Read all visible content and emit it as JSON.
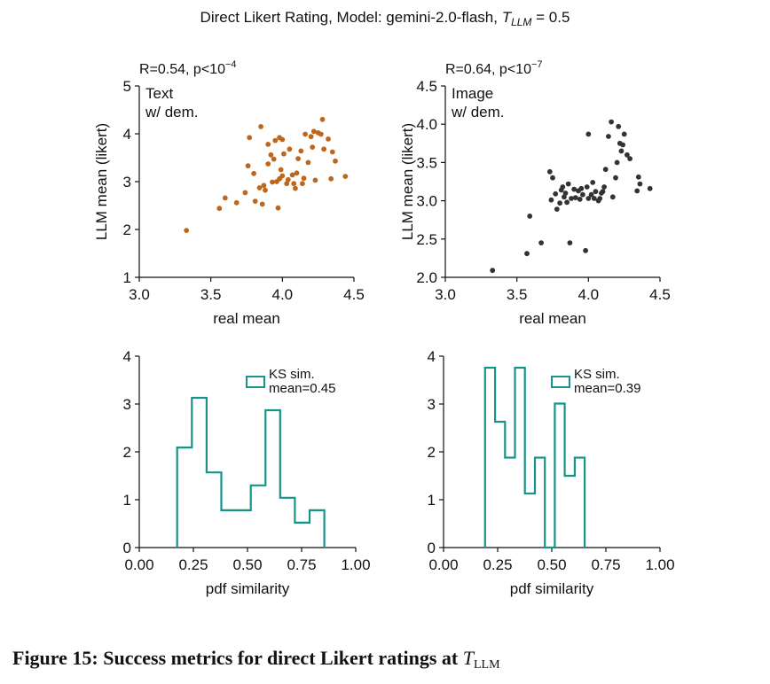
{
  "figure": {
    "title_prefix": "Direct Likert Rating, Model: gemini-2.0-flash, ",
    "title_sym": "T",
    "title_sub": "LLM",
    "title_suffix": " = 0.5",
    "caption_text": "Figure 15: Success metrics for direct Likert ratings at ",
    "caption_sym": "T",
    "caption_sub": "LLM"
  },
  "colors": {
    "text_scatter": "#C0661A",
    "image_scatter": "#333333",
    "hist": "#17948A",
    "axis": "#111111"
  },
  "chart_data": [
    {
      "id": "text-scatter",
      "type": "scatter",
      "stat_prefix": "R=0.54, p<10",
      "stat_exp": "−4",
      "label_lines": [
        "Text",
        "w/ dem."
      ],
      "xlabel": "real mean",
      "ylabel": "LLM mean (likert)",
      "xlim": [
        3.0,
        4.5
      ],
      "ylim": [
        1,
        5
      ],
      "xticks": [
        "3.0",
        "3.5",
        "4.0",
        "4.5"
      ],
      "yticks": [
        "1",
        "2",
        "3",
        "4",
        "5"
      ],
      "points": [
        [
          3.33,
          1.98
        ],
        [
          3.56,
          2.44
        ],
        [
          3.6,
          2.66
        ],
        [
          3.68,
          2.56
        ],
        [
          3.74,
          2.77
        ],
        [
          3.76,
          3.33
        ],
        [
          3.77,
          3.92
        ],
        [
          3.8,
          3.17
        ],
        [
          3.81,
          2.59
        ],
        [
          3.84,
          2.87
        ],
        [
          3.85,
          4.15
        ],
        [
          3.86,
          2.53
        ],
        [
          3.87,
          2.92
        ],
        [
          3.88,
          2.82
        ],
        [
          3.9,
          3.37
        ],
        [
          3.9,
          3.78
        ],
        [
          3.92,
          3.56
        ],
        [
          3.93,
          2.99
        ],
        [
          3.94,
          3.47
        ],
        [
          3.95,
          3.86
        ],
        [
          3.96,
          3.0
        ],
        [
          3.97,
          2.45
        ],
        [
          3.98,
          3.92
        ],
        [
          3.98,
          3.06
        ],
        [
          3.99,
          3.25
        ],
        [
          4.0,
          3.88
        ],
        [
          4.0,
          3.12
        ],
        [
          4.01,
          3.58
        ],
        [
          4.03,
          2.96
        ],
        [
          4.04,
          3.04
        ],
        [
          4.05,
          3.68
        ],
        [
          4.07,
          3.14
        ],
        [
          4.08,
          2.96
        ],
        [
          4.09,
          2.86
        ],
        [
          4.1,
          3.18
        ],
        [
          4.11,
          3.48
        ],
        [
          4.13,
          3.64
        ],
        [
          4.14,
          2.96
        ],
        [
          4.15,
          3.07
        ],
        [
          4.16,
          3.99
        ],
        [
          4.18,
          3.4
        ],
        [
          4.2,
          3.94
        ],
        [
          4.21,
          3.72
        ],
        [
          4.22,
          4.05
        ],
        [
          4.23,
          3.03
        ],
        [
          4.25,
          4.02
        ],
        [
          4.27,
          3.99
        ],
        [
          4.28,
          4.3
        ],
        [
          4.29,
          3.68
        ],
        [
          4.32,
          3.89
        ],
        [
          4.34,
          3.06
        ],
        [
          4.35,
          3.62
        ],
        [
          4.37,
          3.43
        ],
        [
          4.44,
          3.11
        ]
      ]
    },
    {
      "id": "image-scatter",
      "type": "scatter",
      "stat_prefix": "R=0.64, p<10",
      "stat_exp": "−7",
      "label_lines": [
        "Image",
        "w/ dem."
      ],
      "xlabel": "real mean",
      "ylabel": "LLM mean (likert)",
      "xlim": [
        3.0,
        4.5
      ],
      "ylim": [
        2.0,
        4.5
      ],
      "xticks": [
        "3.0",
        "3.5",
        "4.0",
        "4.5"
      ],
      "yticks": [
        "2.0",
        "2.5",
        "3.0",
        "3.5",
        "4.0",
        "4.5"
      ],
      "points": [
        [
          3.33,
          2.09
        ],
        [
          3.57,
          2.31
        ],
        [
          3.59,
          2.8
        ],
        [
          3.67,
          2.45
        ],
        [
          3.73,
          3.38
        ],
        [
          3.74,
          3.01
        ],
        [
          3.75,
          3.3
        ],
        [
          3.77,
          3.09
        ],
        [
          3.78,
          2.89
        ],
        [
          3.8,
          2.97
        ],
        [
          3.81,
          3.14
        ],
        [
          3.82,
          3.18
        ],
        [
          3.83,
          3.05
        ],
        [
          3.84,
          3.1
        ],
        [
          3.85,
          2.98
        ],
        [
          3.86,
          3.22
        ],
        [
          3.87,
          2.45
        ],
        [
          3.88,
          3.03
        ],
        [
          3.9,
          3.15
        ],
        [
          3.91,
          3.04
        ],
        [
          3.93,
          3.13
        ],
        [
          3.94,
          3.02
        ],
        [
          3.95,
          3.16
        ],
        [
          3.96,
          3.08
        ],
        [
          3.98,
          2.35
        ],
        [
          3.99,
          3.18
        ],
        [
          4.0,
          3.03
        ],
        [
          4.0,
          3.87
        ],
        [
          4.02,
          3.08
        ],
        [
          4.03,
          3.24
        ],
        [
          4.04,
          3.03
        ],
        [
          4.05,
          3.12
        ],
        [
          4.07,
          3.0
        ],
        [
          4.08,
          3.03
        ],
        [
          4.09,
          3.1
        ],
        [
          4.1,
          3.12
        ],
        [
          4.11,
          3.18
        ],
        [
          4.12,
          3.41
        ],
        [
          4.14,
          3.84
        ],
        [
          4.16,
          4.03
        ],
        [
          4.17,
          3.05
        ],
        [
          4.19,
          3.3
        ],
        [
          4.2,
          3.5
        ],
        [
          4.21,
          3.97
        ],
        [
          4.22,
          3.75
        ],
        [
          4.23,
          3.65
        ],
        [
          4.24,
          3.73
        ],
        [
          4.25,
          3.87
        ],
        [
          4.27,
          3.6
        ],
        [
          4.29,
          3.55
        ],
        [
          4.34,
          3.13
        ],
        [
          4.35,
          3.31
        ],
        [
          4.36,
          3.22
        ],
        [
          4.43,
          3.16
        ]
      ]
    },
    {
      "id": "text-hist",
      "type": "histogram",
      "legend_title": "KS sim.",
      "legend_value": "mean=0.45",
      "xlabel": "pdf similarity",
      "xlim": [
        0.0,
        1.0
      ],
      "ylim": [
        0,
        4
      ],
      "xticks": [
        "0.00",
        "0.25",
        "0.50",
        "0.75",
        "1.00"
      ],
      "yticks": [
        "0",
        "1",
        "2",
        "3",
        "4"
      ],
      "bin_edges": [
        0.175,
        0.243,
        0.311,
        0.379,
        0.447,
        0.515,
        0.583,
        0.651,
        0.719,
        0.787,
        0.855
      ],
      "counts": [
        2.09,
        3.13,
        1.57,
        0.78,
        0.78,
        1.3,
        2.87,
        1.04,
        0.52,
        0.78
      ]
    },
    {
      "id": "image-hist",
      "type": "histogram",
      "legend_title": "KS sim.",
      "legend_value": "mean=0.39",
      "xlabel": "pdf similarity",
      "xlim": [
        0.0,
        1.0
      ],
      "ylim": [
        0,
        4
      ],
      "xticks": [
        "0.00",
        "0.25",
        "0.50",
        "0.75",
        "1.00"
      ],
      "yticks": [
        "0",
        "1",
        "2",
        "3",
        "4"
      ],
      "bin_edges": [
        0.192,
        0.238,
        0.284,
        0.33,
        0.376,
        0.422,
        0.468,
        0.514,
        0.56,
        0.606,
        0.652
      ],
      "counts": [
        3.76,
        2.63,
        1.88,
        3.76,
        1.13,
        1.88,
        0.0,
        3.01,
        1.5,
        1.88
      ]
    }
  ]
}
